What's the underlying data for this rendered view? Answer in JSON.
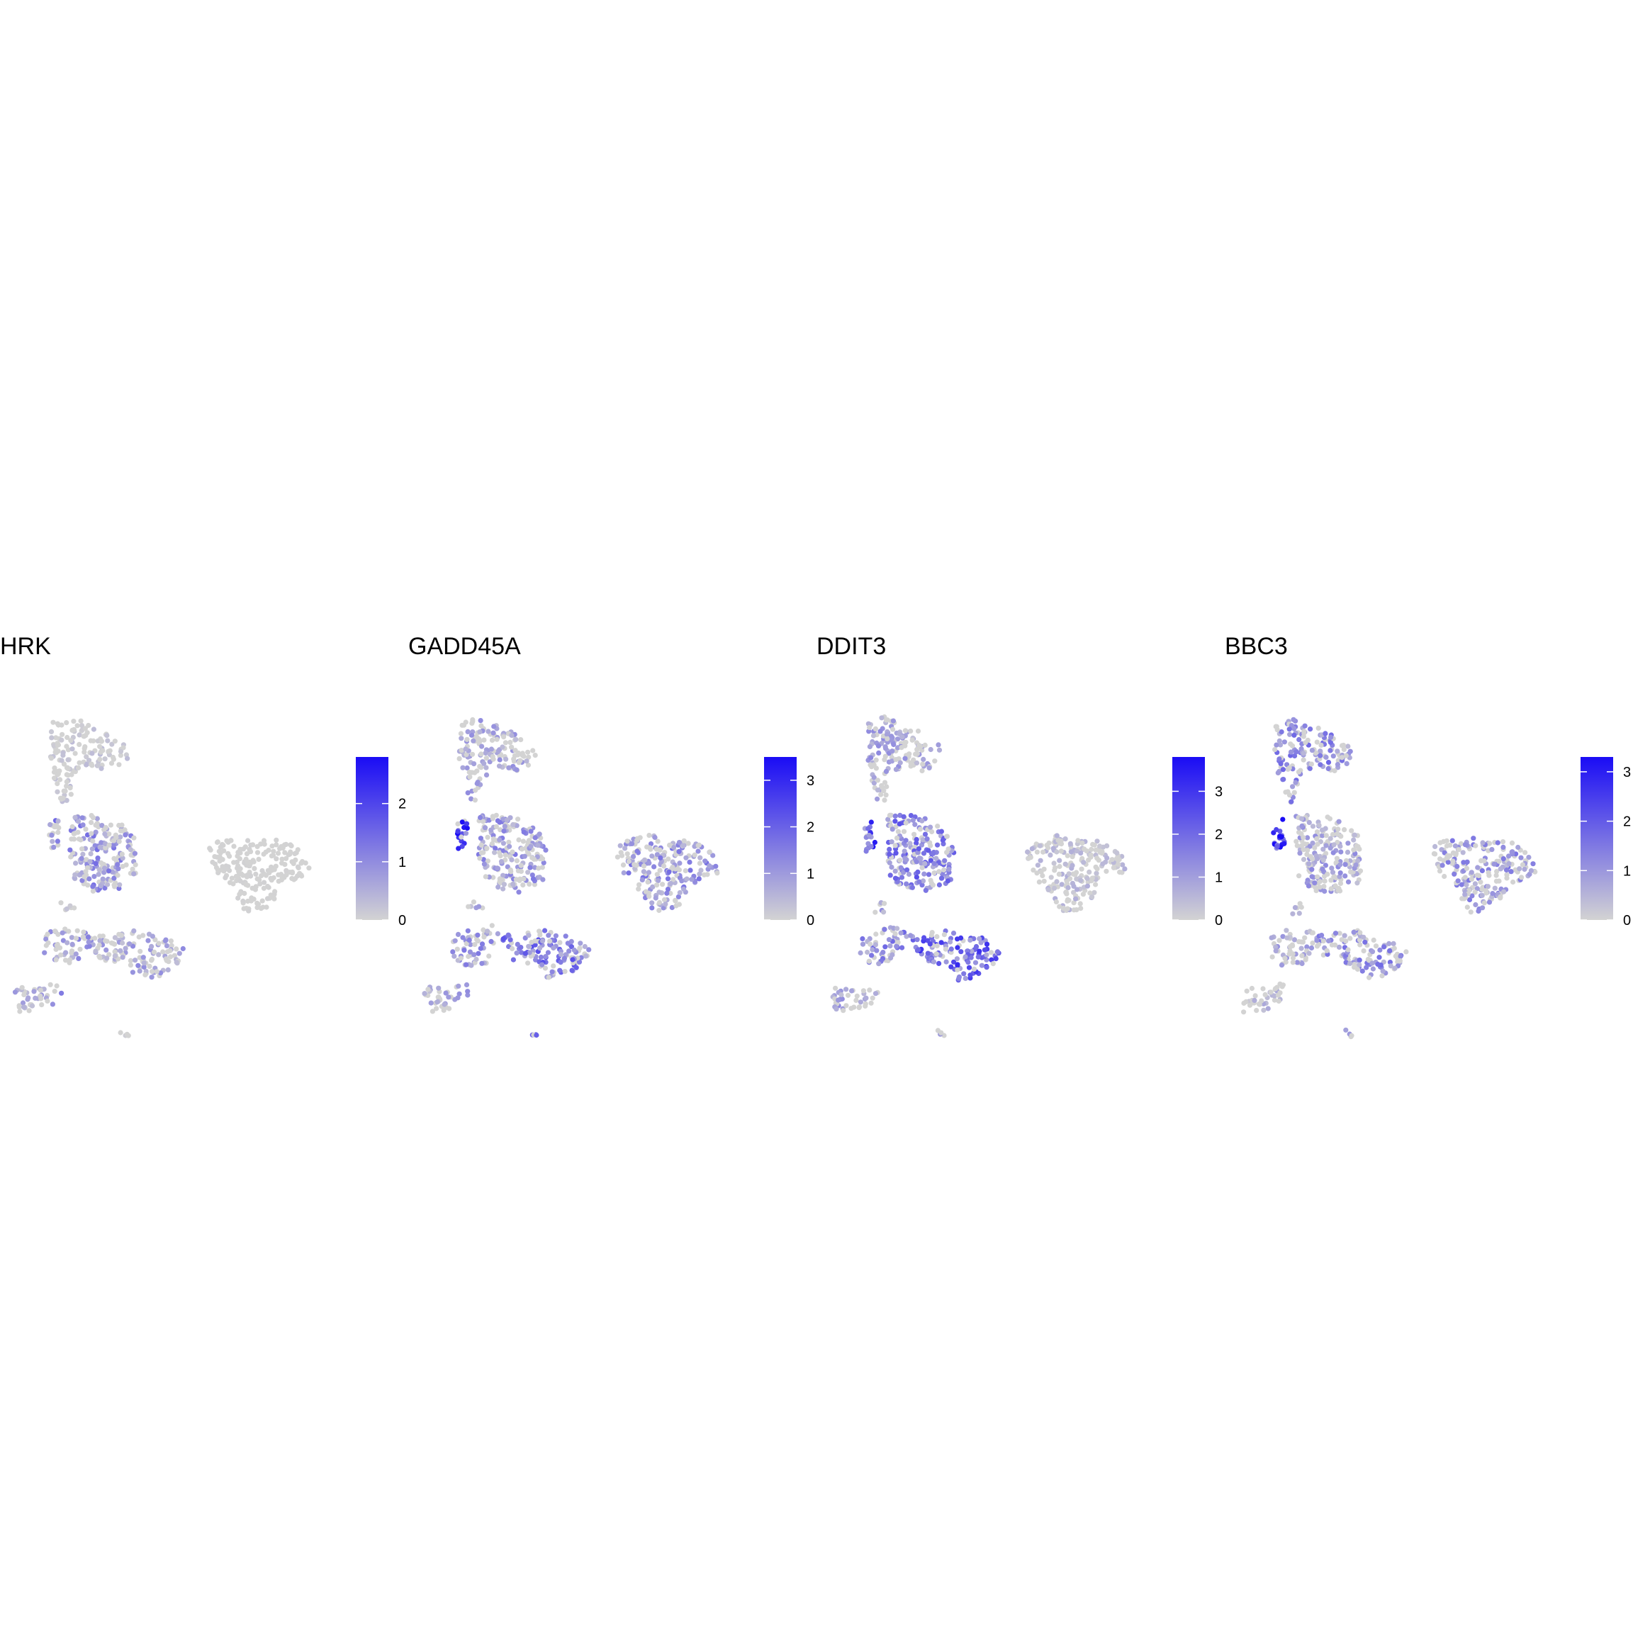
{
  "colors": {
    "low": "#d3d3d3",
    "high": "#1a0cf5",
    "background": "#ffffff"
  },
  "chart_data": [
    {
      "type": "scatter",
      "title": "HRK",
      "xlabel": "",
      "ylabel": "",
      "color_scale": {
        "min": 0,
        "max": 2.8,
        "ticks": [
          0,
          1,
          2
        ]
      },
      "expression_by_cluster": {
        "top": 0.2,
        "side": 0.9,
        "middle": 0.8,
        "bottom_left": 0.7,
        "bottom_mid": 0.6,
        "bottom_tail": 0.7,
        "small_dots": 0.2,
        "right_cluster": 0.02,
        "tiny": 0.2
      }
    },
    {
      "type": "scatter",
      "title": "GADD45A",
      "xlabel": "",
      "ylabel": "",
      "color_scale": {
        "min": 0,
        "max": 3.5,
        "ticks": [
          0,
          1,
          2,
          3
        ]
      },
      "expression_by_cluster": {
        "top": 0.7,
        "side": 2.2,
        "middle": 0.9,
        "bottom_left": 0.9,
        "bottom_mid": 1.3,
        "bottom_tail": 0.7,
        "small_dots": 0.6,
        "right_cluster": 1.0,
        "tiny": 1.4
      }
    },
    {
      "type": "scatter",
      "title": "DDIT3",
      "xlabel": "",
      "ylabel": "",
      "color_scale": {
        "min": 0,
        "max": 3.8,
        "ticks": [
          0,
          1,
          2,
          3
        ]
      },
      "expression_by_cluster": {
        "top": 0.8,
        "side": 2.0,
        "middle": 1.4,
        "bottom_left": 1.2,
        "bottom_mid": 1.8,
        "bottom_tail": 0.8,
        "small_dots": 0.9,
        "right_cluster": 0.4,
        "tiny": 0.8
      }
    },
    {
      "type": "scatter",
      "title": "BBC3",
      "xlabel": "",
      "ylabel": "",
      "color_scale": {
        "min": 0,
        "max": 3.3,
        "ticks": [
          0,
          1,
          2,
          3
        ]
      },
      "expression_by_cluster": {
        "top": 1.0,
        "side": 2.2,
        "middle": 0.7,
        "bottom_left": 0.6,
        "bottom_mid": 1.0,
        "bottom_tail": 0.4,
        "small_dots": 0.5,
        "right_cluster": 0.9,
        "tiny": 0.6
      }
    }
  ]
}
